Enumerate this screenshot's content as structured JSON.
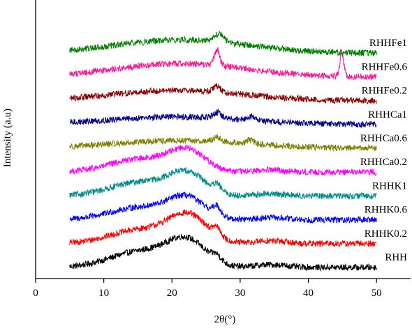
{
  "chart_data": {
    "type": "line",
    "xlabel": "2θ(°)",
    "ylabel": "Intensity (a.u)",
    "xlim": [
      0,
      55
    ],
    "xticks": [
      0,
      10,
      20,
      30,
      40,
      50
    ],
    "xrange_data": [
      5,
      50
    ],
    "grid": false,
    "legend": "labels at right end of each stacked pattern",
    "yaxis_ticks": "none",
    "series": [
      {
        "name": "RHH",
        "color": "#000000",
        "baseline": 0,
        "peaks": [
          [
            15.5,
            2.3,
            20
          ],
          [
            22.2,
            3.6,
            8
          ],
          [
            26.6,
            0.8,
            0.4
          ],
          [
            34.5,
            0.4,
            5
          ]
        ]
      },
      {
        "name": "RHHK0.2",
        "color": "#ff0000",
        "baseline": 1,
        "peaks": [
          [
            15.5,
            2.0,
            20
          ],
          [
            22.4,
            3.8,
            8
          ],
          [
            26.6,
            1.1,
            0.3
          ],
          [
            34.5,
            0.4,
            5
          ]
        ]
      },
      {
        "name": "RHHK0.6",
        "color": "#0000ff",
        "baseline": 2,
        "peaks": [
          [
            15.5,
            1.8,
            20
          ],
          [
            22.2,
            2.9,
            7
          ],
          [
            26.6,
            1.3,
            0.3
          ],
          [
            34.5,
            0.3,
            5
          ]
        ]
      },
      {
        "name": "RHHK1",
        "color": "#008b8b",
        "baseline": 3,
        "peaks": [
          [
            15.5,
            2.0,
            20
          ],
          [
            22.3,
            3.0,
            7
          ],
          [
            26.7,
            0.9,
            0.3
          ],
          [
            34.5,
            0.3,
            5
          ]
        ]
      },
      {
        "name": "RHHCa0.2",
        "color": "#ff00ff",
        "baseline": 4,
        "peaks": [
          [
            15.5,
            1.9,
            20
          ],
          [
            22.3,
            2.9,
            7
          ],
          [
            34.5,
            0.3,
            5
          ]
        ]
      },
      {
        "name": "RHHCa0.6",
        "color": "#808000",
        "baseline": 5,
        "peaks": [
          [
            21.5,
            1.1,
            100
          ],
          [
            26.6,
            0.6,
            0.3
          ],
          [
            31.5,
            0.5,
            0.3
          ]
        ]
      },
      {
        "name": "RHHCa1",
        "color": "#00008b",
        "baseline": 6,
        "peaks": [
          [
            21.0,
            1.1,
            100
          ],
          [
            26.6,
            0.8,
            0.3
          ],
          [
            31.8,
            0.5,
            0.5
          ]
        ]
      },
      {
        "name": "RHHFe0.2",
        "color": "#8b0000",
        "baseline": 7,
        "peaks": [
          [
            21.0,
            1.5,
            90
          ],
          [
            26.6,
            0.8,
            0.3
          ]
        ]
      },
      {
        "name": "RHHFe0.6",
        "color": "#ff1493",
        "baseline": 8,
        "peaks": [
          [
            21.5,
            1.9,
            90
          ],
          [
            26.6,
            2.3,
            0.15
          ],
          [
            44.9,
            3.3,
            0.08
          ]
        ]
      },
      {
        "name": "RHHFe1",
        "color": "#008000",
        "baseline": 9,
        "peaks": [
          [
            21.5,
            1.9,
            90
          ],
          [
            26.6,
            0.8,
            0.3
          ],
          [
            27.4,
            0.6,
            0.3
          ]
        ]
      }
    ]
  }
}
